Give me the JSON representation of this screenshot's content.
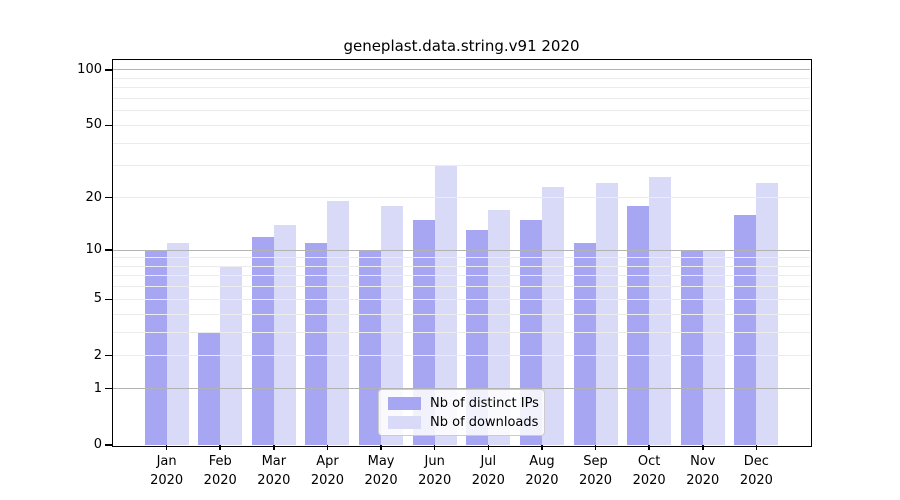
{
  "chart_data": {
    "type": "bar",
    "title": "geneplast.data.string.v91 2020",
    "xlabel": "",
    "ylabel": "",
    "year_label": "2020",
    "categories": [
      "Jan",
      "Feb",
      "Mar",
      "Apr",
      "May",
      "Jun",
      "Jul",
      "Aug",
      "Sep",
      "Oct",
      "Nov",
      "Dec"
    ],
    "series": [
      {
        "key": "distinct-ips",
        "name": "Nb of distinct IPs",
        "color": "#a6a6f2",
        "values": [
          10,
          3,
          12,
          11,
          10,
          15,
          13,
          15,
          11,
          18,
          10,
          16
        ]
      },
      {
        "key": "downloads",
        "name": "Nb of downloads",
        "color": "#d9d9f8",
        "values": [
          11,
          8,
          14,
          19,
          18,
          30,
          17,
          23,
          24,
          26,
          10,
          24
        ]
      }
    ],
    "y_scale": "log10(value+1)",
    "y_axis_top": 113,
    "y_ticks": [
      0,
      1,
      2,
      5,
      10,
      20,
      50,
      100
    ],
    "gridlines_major": [
      1,
      10,
      100
    ],
    "gridlines_minor": [
      2,
      3,
      4,
      5,
      6,
      7,
      8,
      9,
      20,
      30,
      40,
      50,
      60,
      70,
      80,
      90
    ],
    "grid": "on",
    "legend_position": "inside lower-center",
    "colors": {
      "major_gridline": "#b3b3b3",
      "minor_gridline": "#ececec",
      "axis": "#000000",
      "background": "#ffffff"
    }
  }
}
